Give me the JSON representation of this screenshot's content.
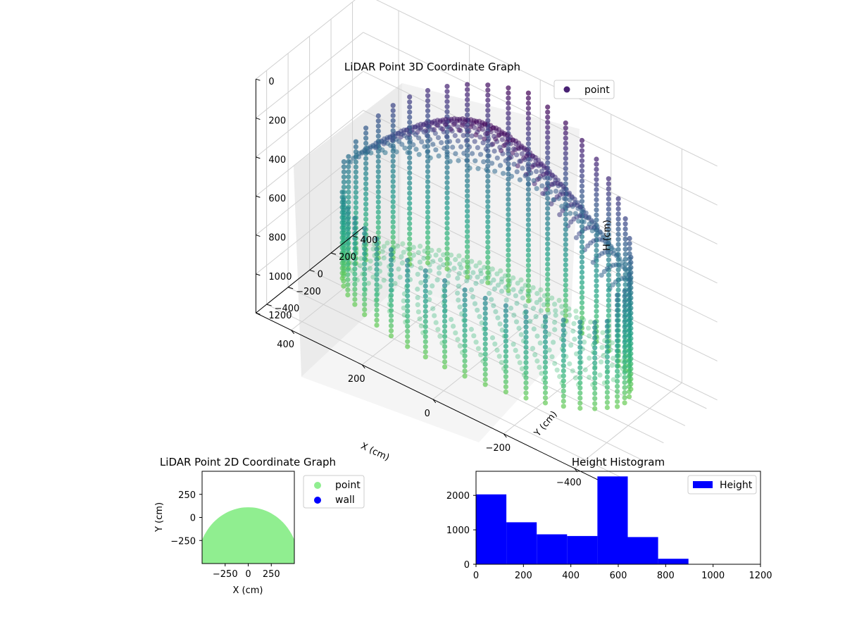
{
  "figure": {
    "colors": {
      "viridis_dark": "#440154",
      "viridis_mid": "#2a788e",
      "viridis_light": "#6ece58",
      "pane_gray": "#f2f2f2",
      "grid_gray": "#d0d0d0",
      "light_green": "#90ee90",
      "blue": "#0000ff"
    }
  },
  "chart_data": [
    {
      "type": "scatter",
      "projection": "3d",
      "title": "LiDAR Point 3D Coordinate Graph",
      "xlabel": "X (cm)",
      "ylabel": "Y (cm)",
      "zlabel": "H (cm)",
      "xlim": [
        -500,
        500
      ],
      "ylim": [
        -500,
        500
      ],
      "zlim": [
        0,
        1200
      ],
      "z_inverted": true,
      "xticks": [
        -400,
        -200,
        0,
        200,
        400
      ],
      "xtick_labels": [
        "−400",
        "−200",
        "0",
        "200",
        "400"
      ],
      "yticks": [
        -400,
        -200,
        0,
        200,
        400
      ],
      "ytick_labels": [
        "−400",
        "−200",
        "0",
        "200",
        "400"
      ],
      "zticks": [
        0,
        200,
        400,
        600,
        800,
        1000,
        1200
      ],
      "ztick_labels": [
        "0",
        "200",
        "400",
        "600",
        "800",
        "1000",
        "1200"
      ],
      "grid": true,
      "colormap": "viridis",
      "legend": {
        "position": "upper right",
        "entries": [
          {
            "label": "point",
            "color": "#482173"
          }
        ]
      },
      "shape": {
        "wall_radius_cm": 390,
        "wall_height_cm": 1100,
        "dome_top_height_cm": 20,
        "wall_ring_count": 44
      }
    },
    {
      "type": "scatter",
      "title": "LiDAR Point 2D Coordinate Graph",
      "xlabel": "X (cm)",
      "ylabel": "Y (cm)",
      "xlim": [
        -500,
        500
      ],
      "ylim": [
        -500,
        500
      ],
      "xticks": [
        -250,
        0,
        250
      ],
      "xtick_labels": [
        "−250",
        "0",
        "250"
      ],
      "yticks": [
        -250,
        0,
        250
      ],
      "ytick_labels": [
        "−250",
        "0",
        "250"
      ],
      "legend": {
        "position": "outside right",
        "entries": [
          {
            "label": "point",
            "color": "#90ee90"
          },
          {
            "label": "wall",
            "color": "#0000ff"
          }
        ]
      },
      "region": {
        "description_values": "filled half-disc",
        "x_min": -500,
        "x_max": 500,
        "top_y": 110,
        "bottom_y": -500
      }
    },
    {
      "type": "bar",
      "subtype": "histogram",
      "title": "Height Histogram",
      "bin_edges": [
        0,
        128,
        256,
        384,
        512,
        640,
        768,
        896
      ],
      "values": [
        2030,
        1220,
        870,
        820,
        2550,
        790,
        160
      ],
      "xlim": [
        0,
        1200
      ],
      "ylim": [
        0,
        2700
      ],
      "xticks": [
        0,
        200,
        400,
        600,
        800,
        1000,
        1200
      ],
      "yticks": [
        0,
        1000,
        2000
      ],
      "color": "#0000ff",
      "legend": {
        "position": "upper right",
        "entries": [
          {
            "label": "Height",
            "color": "#0000ff"
          }
        ]
      }
    }
  ]
}
